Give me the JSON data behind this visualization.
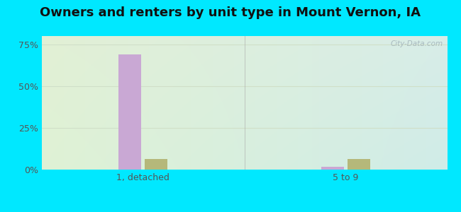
{
  "title": "Owners and renters by unit type in Mount Vernon, IA",
  "categories": [
    "1, detached",
    "5 to 9"
  ],
  "owner_values": [
    69.0,
    1.5
  ],
  "renter_values": [
    6.5,
    6.5
  ],
  "owner_color": "#c9a8d4",
  "renter_color": "#b5b87a",
  "yticks": [
    0,
    25,
    50,
    75
  ],
  "ylim": [
    0,
    80
  ],
  "title_fontsize": 13,
  "tick_fontsize": 9,
  "legend_fontsize": 9,
  "watermark": "City-Data.com",
  "background_outer": "#00e8ff",
  "grid_color": "#d0dfc8",
  "bg_top_left": "#e2f0d5",
  "bg_top_right": "#d8ede8",
  "bg_bottom_left": "#dff2d5",
  "bg_bottom_right": "#d0ece8"
}
